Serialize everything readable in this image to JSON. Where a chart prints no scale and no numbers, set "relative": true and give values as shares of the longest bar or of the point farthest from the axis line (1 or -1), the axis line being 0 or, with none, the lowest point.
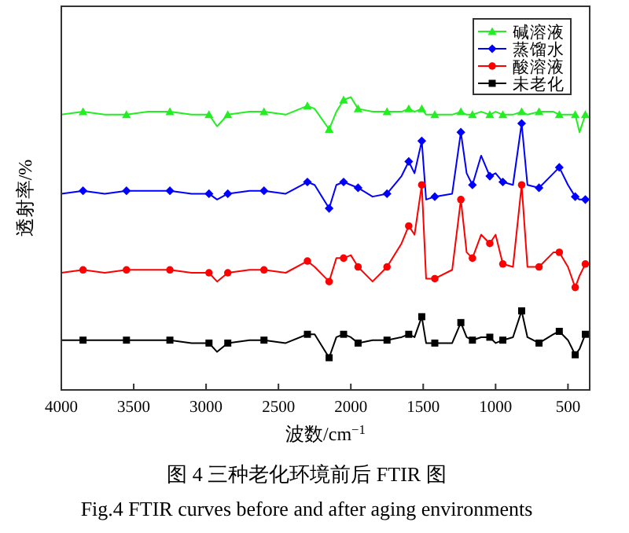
{
  "chart_data": {
    "type": "line",
    "relative": true,
    "xlabel": "波数/cm$^{−1}$",
    "ylabel": "透射率/%",
    "annotations": [
      "图 4 三种老化环境前后 FTIR 图",
      "Fig.4 FTIR curves before and after aging environments"
    ],
    "xlim": [
      4000,
      350
    ],
    "xticks": [
      4000,
      3500,
      3000,
      2500,
      2000,
      1500,
      1000,
      500
    ],
    "x": [
      4000,
      3850,
      3700,
      3550,
      3400,
      3250,
      3100,
      2980,
      2924,
      2850,
      2700,
      2600,
      2450,
      2300,
      2250,
      2150,
      2100,
      2050,
      2000,
      1950,
      1850,
      1750,
      1650,
      1600,
      1560,
      1510,
      1480,
      1420,
      1300,
      1240,
      1200,
      1160,
      1100,
      1040,
      1000,
      950,
      880,
      820,
      780,
      700,
      600,
      560,
      500,
      450,
      420,
      380
    ],
    "legend": "top right",
    "grid": false,
    "series": [
      {
        "name": "碱溶液",
        "color": "#22ee22",
        "marker": "triangle",
        "values": [
          0.94,
          0.95,
          0.94,
          0.94,
          0.95,
          0.95,
          0.94,
          0.94,
          0.9,
          0.94,
          0.95,
          0.95,
          0.94,
          0.97,
          0.96,
          0.89,
          0.95,
          0.99,
          1.0,
          0.96,
          0.95,
          0.95,
          0.95,
          0.96,
          0.95,
          0.96,
          0.94,
          0.94,
          0.94,
          0.95,
          0.94,
          0.94,
          0.95,
          0.94,
          0.95,
          0.94,
          0.94,
          0.95,
          0.94,
          0.95,
          0.95,
          0.94,
          0.94,
          0.94,
          0.88,
          0.94
        ]
      },
      {
        "name": "蒸馏水",
        "color": "#0000ff",
        "marker": "diamond",
        "values": [
          0.67,
          0.68,
          0.67,
          0.68,
          0.68,
          0.68,
          0.67,
          0.67,
          0.65,
          0.67,
          0.68,
          0.68,
          0.67,
          0.71,
          0.7,
          0.62,
          0.7,
          0.71,
          0.7,
          0.69,
          0.66,
          0.67,
          0.73,
          0.78,
          0.74,
          0.85,
          0.65,
          0.66,
          0.67,
          0.88,
          0.74,
          0.7,
          0.8,
          0.73,
          0.74,
          0.71,
          0.7,
          0.91,
          0.7,
          0.69,
          0.74,
          0.76,
          0.7,
          0.66,
          0.65,
          0.65
        ]
      },
      {
        "name": "酸溶液",
        "color": "#ff0000",
        "marker": "circle",
        "values": [
          0.4,
          0.41,
          0.4,
          0.41,
          0.41,
          0.41,
          0.4,
          0.4,
          0.37,
          0.4,
          0.41,
          0.41,
          0.4,
          0.44,
          0.42,
          0.37,
          0.45,
          0.45,
          0.46,
          0.42,
          0.37,
          0.42,
          0.5,
          0.56,
          0.53,
          0.7,
          0.38,
          0.38,
          0.41,
          0.65,
          0.47,
          0.45,
          0.53,
          0.5,
          0.53,
          0.43,
          0.42,
          0.7,
          0.42,
          0.42,
          0.47,
          0.47,
          0.42,
          0.35,
          0.39,
          0.43
        ]
      },
      {
        "name": "未老化",
        "color": "#000000",
        "marker": "square",
        "values": [
          0.17,
          0.17,
          0.17,
          0.17,
          0.17,
          0.17,
          0.16,
          0.16,
          0.13,
          0.16,
          0.17,
          0.17,
          0.16,
          0.19,
          0.19,
          0.11,
          0.18,
          0.19,
          0.18,
          0.16,
          0.17,
          0.17,
          0.18,
          0.19,
          0.18,
          0.25,
          0.16,
          0.16,
          0.16,
          0.23,
          0.18,
          0.17,
          0.18,
          0.18,
          0.16,
          0.17,
          0.18,
          0.27,
          0.18,
          0.16,
          0.19,
          0.2,
          0.17,
          0.12,
          0.14,
          0.19
        ]
      }
    ]
  }
}
